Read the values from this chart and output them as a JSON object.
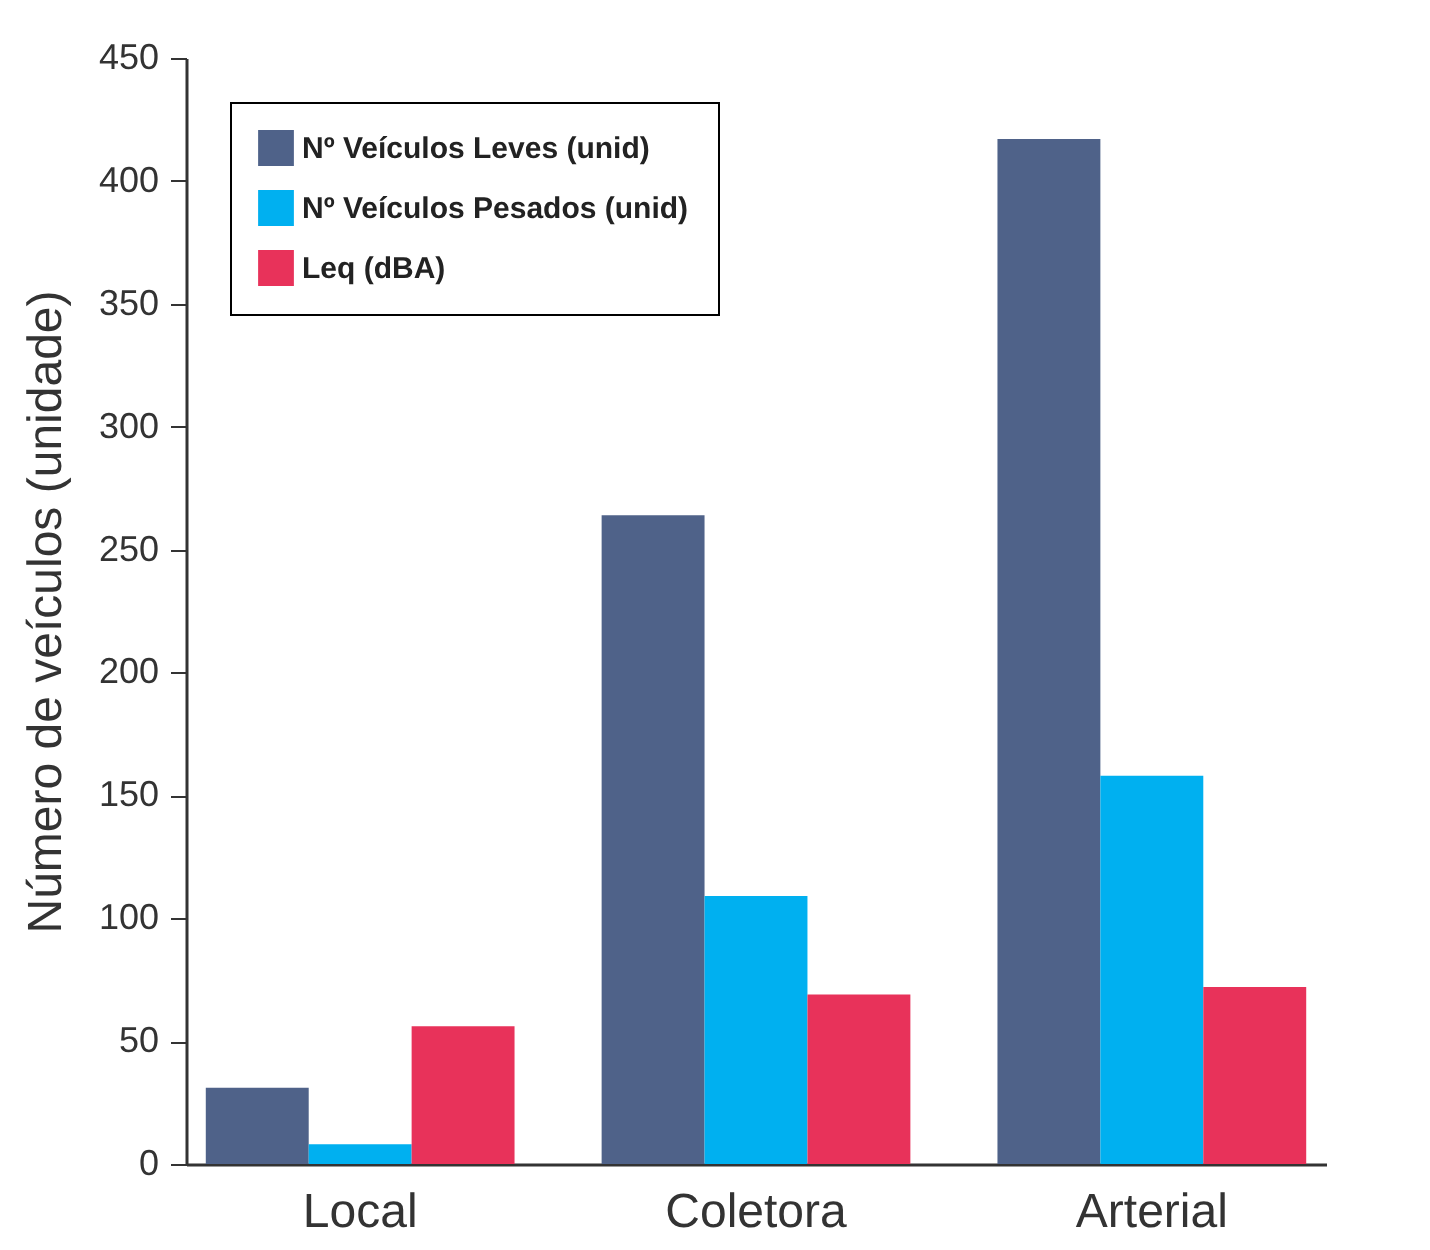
{
  "chart_data": {
    "type": "bar",
    "ylabel": "Número de veículos (unidade)",
    "categories": [
      "Local",
      "Coletora",
      "Arterial"
    ],
    "series": [
      {
        "name": "Nº Veículos Leves (unid)",
        "color": "#4f6289",
        "values": [
          31,
          264,
          417
        ]
      },
      {
        "name": "Nº Veículos Pesados (unid)",
        "color": "#00b0f0",
        "values": [
          8,
          109,
          158
        ]
      },
      {
        "name": "Leq (dBA)",
        "color": "#e8325a",
        "values": [
          56,
          69,
          72
        ]
      }
    ],
    "ylim": [
      0,
      450
    ],
    "yticks": [
      0,
      50,
      100,
      150,
      200,
      250,
      300,
      350,
      400,
      450
    ],
    "grid": false,
    "legend": "top left"
  }
}
